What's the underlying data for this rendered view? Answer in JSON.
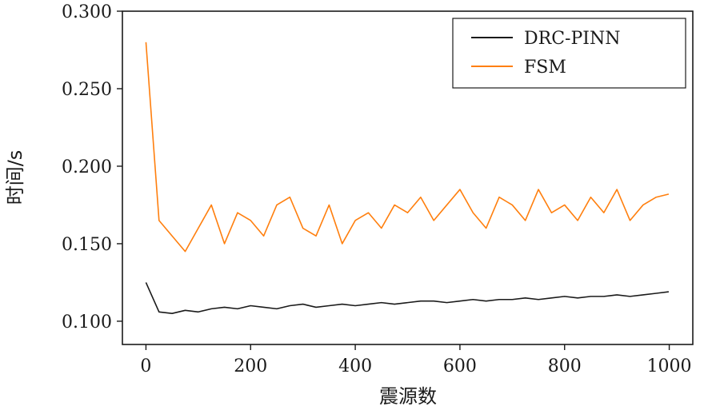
{
  "chart_data": {
    "type": "line",
    "xlabel": "震源数",
    "ylabel": "时间/s",
    "xlim": [
      -45,
      1045
    ],
    "ylim": [
      0.085,
      0.3
    ],
    "xticks": [
      0,
      200,
      400,
      600,
      800,
      1000
    ],
    "xtick_labels": [
      "0",
      "200",
      "400",
      "600",
      "800",
      "1000"
    ],
    "yticks": [
      0.1,
      0.15,
      0.2,
      0.25,
      0.3
    ],
    "ytick_labels": [
      "0.100",
      "0.150",
      "0.200",
      "0.250",
      "0.300"
    ],
    "legend_position": "top-right",
    "grid": false,
    "x": [
      0,
      25,
      50,
      75,
      100,
      125,
      150,
      175,
      200,
      225,
      250,
      275,
      300,
      325,
      350,
      375,
      400,
      425,
      450,
      475,
      500,
      525,
      550,
      575,
      600,
      625,
      650,
      675,
      700,
      725,
      750,
      775,
      800,
      825,
      850,
      875,
      900,
      925,
      950,
      975,
      999
    ],
    "series": [
      {
        "name": "DRC-PINN",
        "color": "#1a1a1a",
        "values": [
          0.125,
          0.106,
          0.105,
          0.107,
          0.106,
          0.108,
          0.109,
          0.108,
          0.11,
          0.109,
          0.108,
          0.11,
          0.111,
          0.109,
          0.11,
          0.111,
          0.11,
          0.111,
          0.112,
          0.111,
          0.112,
          0.113,
          0.113,
          0.112,
          0.113,
          0.114,
          0.113,
          0.114,
          0.114,
          0.115,
          0.114,
          0.115,
          0.116,
          0.115,
          0.116,
          0.116,
          0.117,
          0.116,
          0.117,
          0.118,
          0.119
        ]
      },
      {
        "name": "FSM",
        "color": "#ff7f0e",
        "values": [
          0.28,
          0.165,
          0.155,
          0.145,
          0.16,
          0.175,
          0.15,
          0.17,
          0.165,
          0.155,
          0.175,
          0.18,
          0.16,
          0.155,
          0.175,
          0.15,
          0.165,
          0.17,
          0.16,
          0.175,
          0.17,
          0.18,
          0.165,
          0.175,
          0.185,
          0.17,
          0.16,
          0.18,
          0.175,
          0.165,
          0.185,
          0.17,
          0.175,
          0.165,
          0.18,
          0.17,
          0.185,
          0.165,
          0.175,
          0.18,
          0.182
        ]
      }
    ]
  }
}
